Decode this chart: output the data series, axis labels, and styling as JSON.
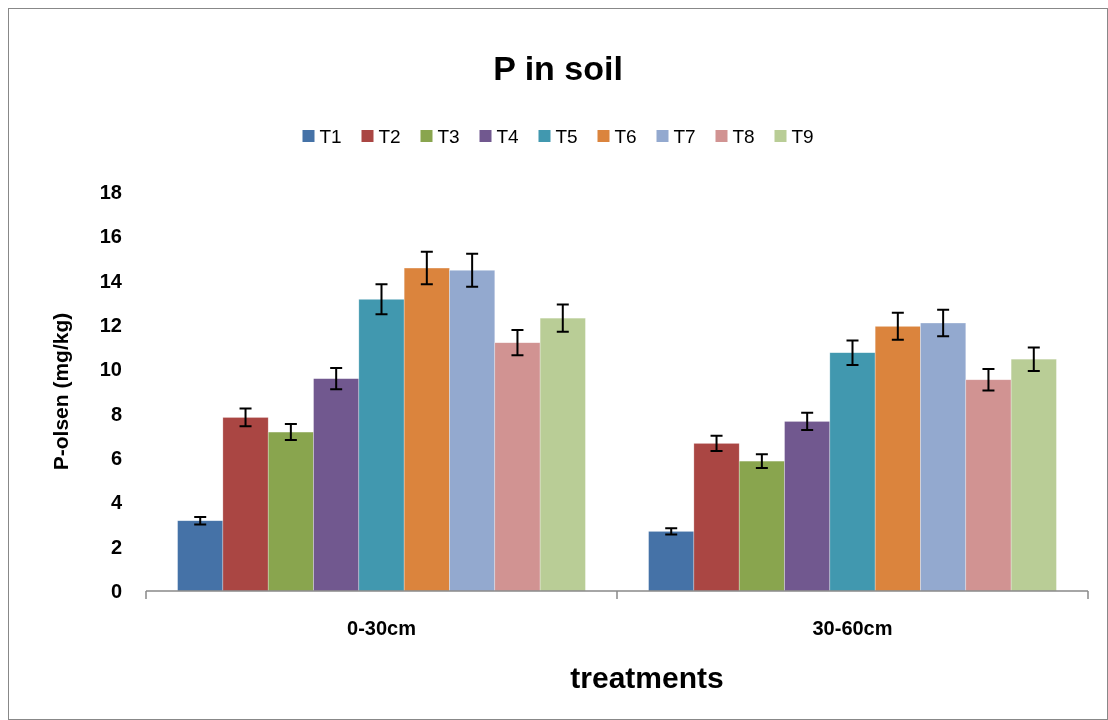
{
  "chart_data": {
    "type": "bar",
    "title": "P in soil",
    "xlabel": "treatments",
    "ylabel": "P-olsen (mg/kg)",
    "categories": [
      "0-30cm",
      "30-60cm"
    ],
    "series": [
      {
        "name": "T1",
        "color": "#4572a7",
        "values": [
          3.17,
          2.69
        ],
        "errors": [
          0.17,
          0.14
        ]
      },
      {
        "name": "T2",
        "color": "#aa4643",
        "values": [
          7.83,
          6.66
        ],
        "errors": [
          0.4,
          0.34
        ]
      },
      {
        "name": "T3",
        "color": "#89a54e",
        "values": [
          7.17,
          5.86
        ],
        "errors": [
          0.36,
          0.31
        ]
      },
      {
        "name": "T4",
        "color": "#71588f",
        "values": [
          9.58,
          7.65
        ],
        "errors": [
          0.48,
          0.39
        ]
      },
      {
        "name": "T5",
        "color": "#4198af",
        "values": [
          13.16,
          10.75
        ],
        "errors": [
          0.68,
          0.55
        ]
      },
      {
        "name": "T6",
        "color": "#db843d",
        "values": [
          14.57,
          11.94
        ],
        "errors": [
          0.73,
          0.61
        ]
      },
      {
        "name": "T7",
        "color": "#93a9cf",
        "values": [
          14.47,
          12.09
        ],
        "errors": [
          0.74,
          0.6
        ]
      },
      {
        "name": "T8",
        "color": "#d19392",
        "values": [
          11.2,
          9.53
        ],
        "errors": [
          0.57,
          0.49
        ]
      },
      {
        "name": "T9",
        "color": "#b9cd96",
        "values": [
          12.31,
          10.46
        ],
        "errors": [
          0.62,
          0.53
        ]
      }
    ],
    "ylim": [
      0,
      18
    ],
    "yticks": [
      0,
      2,
      4,
      6,
      8,
      10,
      12,
      14,
      16,
      18
    ],
    "grid": false,
    "legend": "top"
  }
}
